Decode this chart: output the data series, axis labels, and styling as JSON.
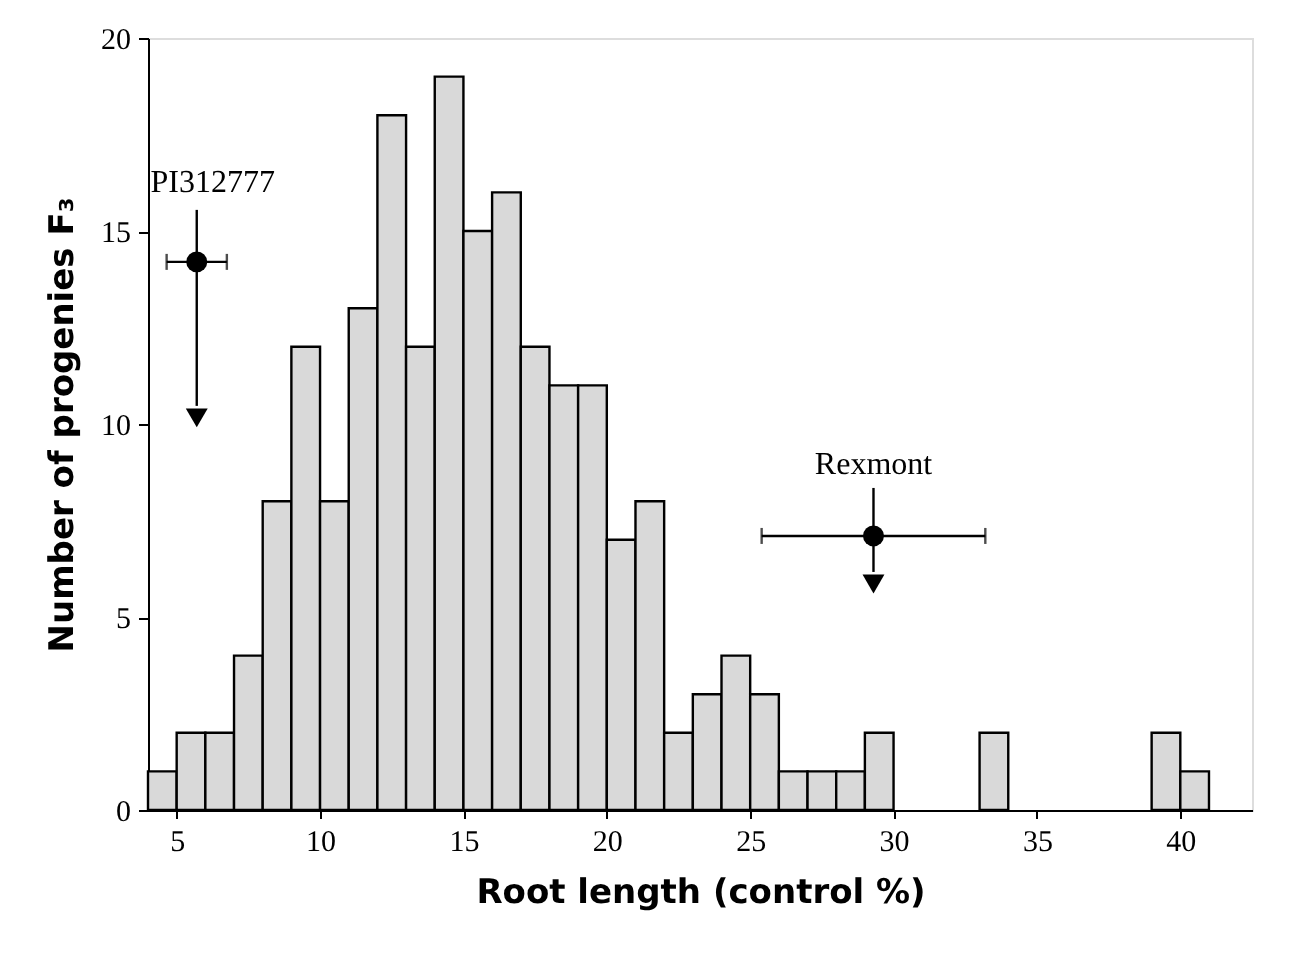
{
  "chart_data": {
    "type": "histogram",
    "xlabel": "Root length (control %)",
    "ylabel": "Number of progenies F₃",
    "bins": [
      4,
      5,
      6,
      7,
      8,
      9,
      10,
      11,
      12,
      13,
      14,
      15,
      16,
      17,
      18,
      19,
      20,
      21,
      22,
      23,
      24,
      25,
      26,
      27,
      28,
      29,
      30,
      31,
      32,
      33,
      34,
      35,
      36,
      37,
      38,
      39,
      40,
      41
    ],
    "values": [
      1,
      2,
      2,
      4,
      8,
      12,
      8,
      13,
      18,
      12,
      19,
      15,
      16,
      12,
      11,
      11,
      7,
      8,
      2,
      3,
      4,
      3,
      1,
      1,
      1,
      2,
      0,
      0,
      0,
      2,
      0,
      0,
      0,
      0,
      0,
      2,
      1
    ],
    "color": "#d9d9d9",
    "series": [
      {
        "name": "PI312777",
        "type": "scatter",
        "x": [
          5.7
        ],
        "values": [
          14.2
        ],
        "xerrors": [
          1.05
        ],
        "color": "#000000",
        "marker": "circle"
      },
      {
        "name": "Rexmont",
        "type": "scatter",
        "x": [
          29.3
        ],
        "values": [
          7.1
        ],
        "xerrors": [
          3.9
        ],
        "color": "#000000",
        "marker": "circle"
      }
    ],
    "xlim": [
      4,
      42.5
    ],
    "xticks": [
      5,
      10,
      15,
      20,
      25,
      30,
      35,
      40
    ],
    "ylim": [
      0,
      20
    ],
    "yticks": [
      0,
      5,
      10,
      15,
      20
    ],
    "grid": false,
    "legend": false
  }
}
